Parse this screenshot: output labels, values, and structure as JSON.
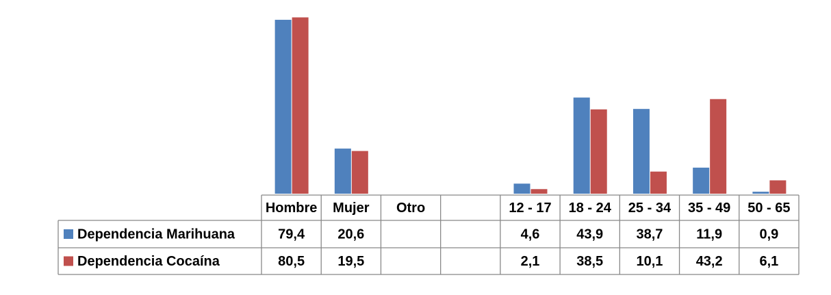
{
  "chart_data": {
    "type": "bar",
    "categories": [
      "Hombre",
      "Mujer",
      "Otro",
      null,
      "12 - 17",
      "18 - 24",
      "25 - 34",
      "35 - 49",
      "50 - 65"
    ],
    "series": [
      {
        "name": "Dependencia Marihuana",
        "color": "#4f81bd",
        "values": [
          79.4,
          20.6,
          null,
          null,
          4.6,
          43.9,
          38.7,
          11.9,
          0.9
        ],
        "value_labels": [
          "79,4",
          "20,6",
          null,
          null,
          "4,6",
          "43,9",
          "38,7",
          "11,9",
          "0,9"
        ]
      },
      {
        "name": "Dependencia Cocaína",
        "color": "#c0504d",
        "values": [
          80.5,
          19.5,
          null,
          null,
          2.1,
          38.5,
          10.1,
          43.2,
          6.1
        ],
        "value_labels": [
          "80,5",
          "19,5",
          null,
          null,
          "2,1",
          "38,5",
          "10,1",
          "43,2",
          "6,1"
        ]
      }
    ]
  }
}
